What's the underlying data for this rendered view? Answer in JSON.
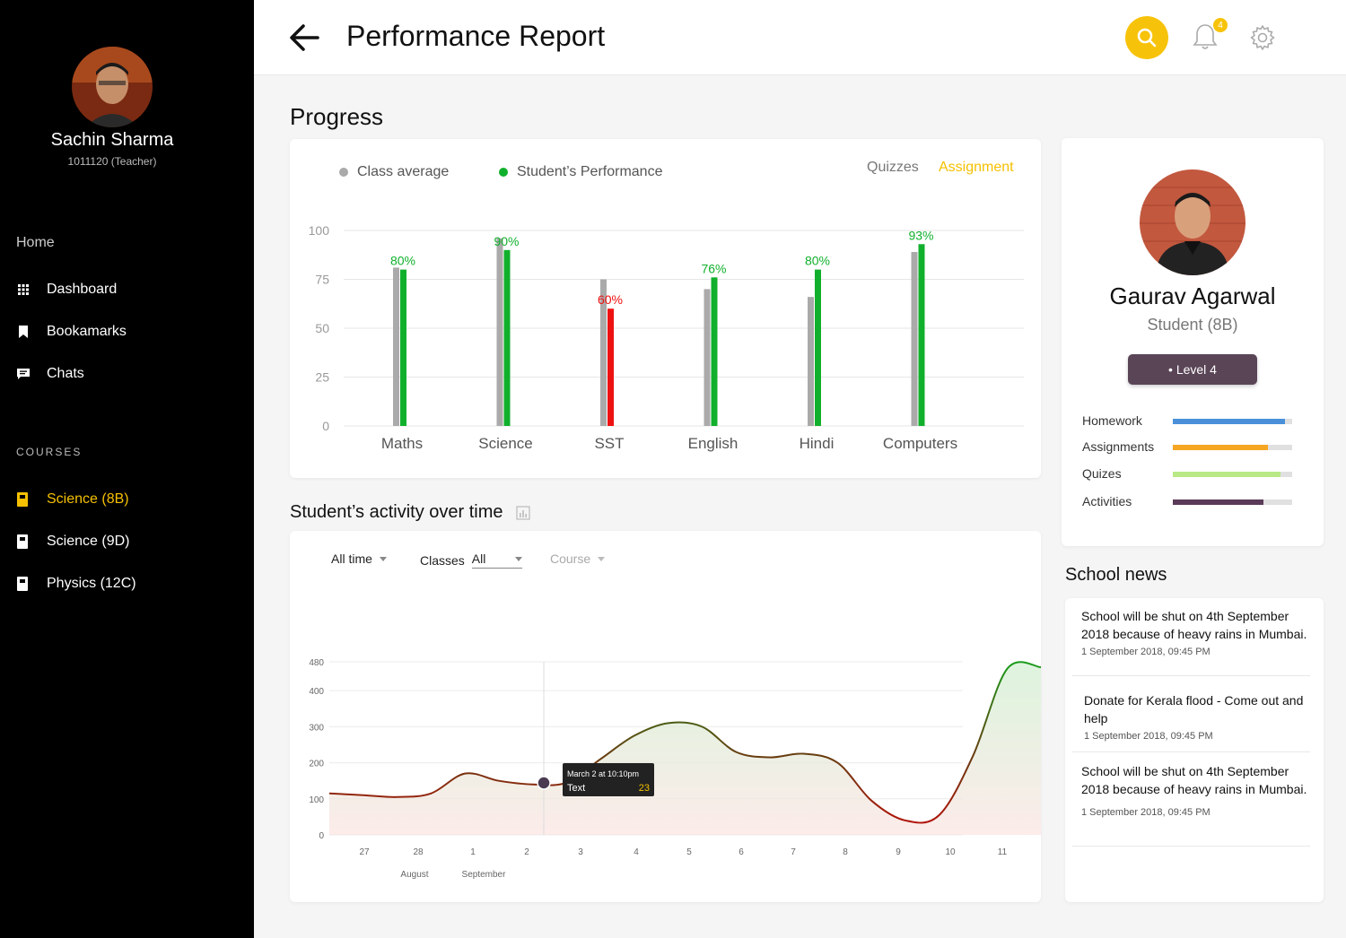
{
  "sidebar": {
    "user_name": "Sachin Sharma",
    "user_id": "1011120 (Teacher)",
    "home_label": "Home",
    "nav": [
      {
        "label": "Dashboard",
        "icon": "grid-icon"
      },
      {
        "label": "Bookamarks",
        "icon": "bookmark-icon"
      },
      {
        "label": "Chats",
        "icon": "chat-icon"
      }
    ],
    "courses_label": "COURSES",
    "courses": [
      {
        "label": "Science (8B)",
        "active": true
      },
      {
        "label": "Science (9D)",
        "active": false
      },
      {
        "label": "Physics (12C)",
        "active": false
      }
    ]
  },
  "header": {
    "title": "Performance Report",
    "notification_count": "4"
  },
  "progress": {
    "section_title": "Progress",
    "legend_class": "Class average",
    "legend_student": "Student’s Performance",
    "tab_quizzes": "Quizzes",
    "tab_assignment": "Assignment",
    "active_tab": "Assignment"
  },
  "chart_data": [
    {
      "type": "bar",
      "categories": [
        "Maths",
        "Science",
        "SST",
        "English",
        "Hindi",
        "Computers"
      ],
      "series": [
        {
          "name": "Class average",
          "values": [
            81,
            96,
            75,
            70,
            66,
            89
          ],
          "color": "#aaaaaa"
        },
        {
          "name": "Student’s Performance",
          "values": [
            80,
            90,
            60,
            76,
            80,
            93
          ],
          "colors": [
            "#11b02c",
            "#11b02c",
            "#ee1111",
            "#11b02c",
            "#11b02c",
            "#11b02c"
          ]
        }
      ],
      "data_labels": [
        "80%",
        "90%",
        "60%",
        "76%",
        "80%",
        "93%"
      ],
      "yticks": [
        "100",
        "75",
        "50",
        "25",
        "0"
      ],
      "ylim": [
        0,
        100
      ]
    },
    {
      "type": "area",
      "x_ticks": [
        "27",
        "28",
        "1",
        "2",
        "3",
        "4",
        "5",
        "6",
        "7",
        "8",
        "9",
        "10",
        "11"
      ],
      "x_group_labels": [
        "August",
        "September"
      ],
      "yticks": [
        "480",
        "400",
        "300",
        "200",
        "100",
        "0"
      ],
      "ylim": [
        0,
        480
      ],
      "values": [
        115,
        110,
        105,
        115,
        170,
        150,
        140,
        145,
        210,
        275,
        310,
        300,
        230,
        215,
        225,
        200,
        95,
        40,
        55,
        220,
        460,
        465
      ],
      "tooltip": {
        "title": "March 2 at 10:10pm",
        "label": "Text",
        "value": "23"
      }
    }
  ],
  "activity": {
    "section_title": "Student’s activity over time",
    "filter_time": "All time",
    "filter_classes_label": "Classes",
    "filter_classes_value": "All",
    "filter_course": "Course"
  },
  "student": {
    "name": "Gaurav Agarwal",
    "class": "Student (8B)",
    "level": "• Level 4",
    "metrics": [
      {
        "label": "Homework",
        "progress": 0.94,
        "color": "#4a90d9"
      },
      {
        "label": "Assignments",
        "progress": 0.8,
        "color": "#f5a623"
      },
      {
        "label": "Quizes",
        "progress": 0.9,
        "color": "#b8e986"
      },
      {
        "label": "Activities",
        "progress": 0.76,
        "color": "#5a3a58"
      }
    ]
  },
  "news": {
    "section_title": "School news",
    "items": [
      {
        "text": "School will be shut on 4th September 2018 because of heavy rains in Mumbai.",
        "date": "1 September 2018, 09:45 PM"
      },
      {
        "text": "Donate for Kerala flood - Come out and help",
        "date": "1 September 2018, 09:45 PM"
      },
      {
        "text": "School will be shut on 4th September 2018 because of heavy rains in Mumbai.",
        "date": "1 September 2018, 09:45 PM"
      }
    ]
  }
}
